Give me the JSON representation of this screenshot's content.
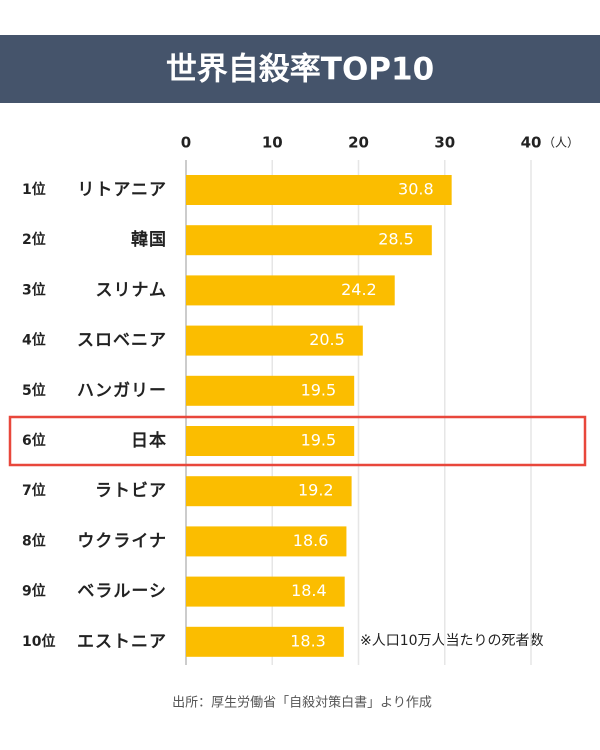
{
  "chart_data": {
    "type": "bar",
    "orientation": "horizontal",
    "title": "世界自殺率TOP10",
    "ranks": [
      "1位",
      "2位",
      "3位",
      "4位",
      "5位",
      "6位",
      "7位",
      "8位",
      "9位",
      "10位"
    ],
    "categories": [
      "リトアニア",
      "韓国",
      "スリナム",
      "スロベニア",
      "ハンガリー",
      "日本",
      "ラトビア",
      "ウクライナ",
      "ベラルーシ",
      "エストニア"
    ],
    "values": [
      30.8,
      28.5,
      24.2,
      20.5,
      19.5,
      19.5,
      19.2,
      18.6,
      18.4,
      18.3
    ],
    "color": "#fbbd00",
    "xlim": [
      0,
      40
    ],
    "xticks": [
      0,
      10,
      20,
      30,
      40
    ],
    "x_unit": "（人）",
    "grid": true,
    "highlight": "日本",
    "highlight_color": "#e8473b",
    "note": "※人口10万人当たりの死者数",
    "source": "出所：厚生労働省「自殺対策白書」より作成"
  }
}
